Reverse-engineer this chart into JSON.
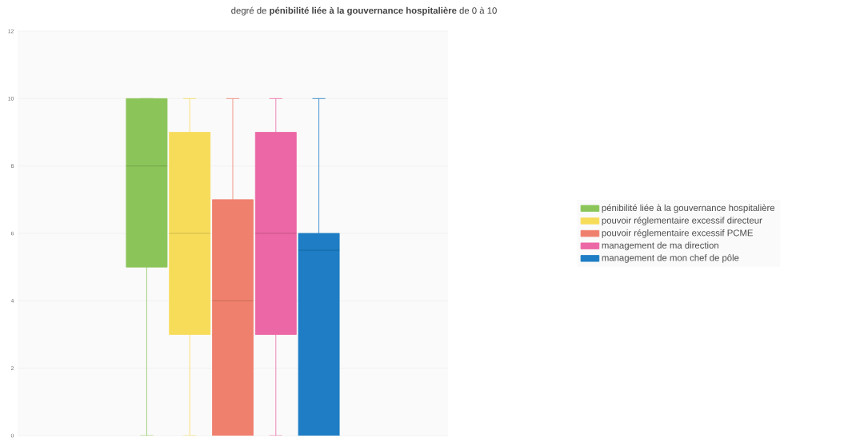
{
  "chart_data": {
    "type": "box",
    "title": "degré de **pénibilité liée à la gouvernance hospitalière** de 0 à 10",
    "categories": [
      null
    ],
    "ylim": [
      0,
      12
    ],
    "yticks": [
      0,
      2,
      4,
      6,
      8,
      10,
      12
    ],
    "grid": "y",
    "legend": "right",
    "tick_labels": "y",
    "series": [
      {
        "name": "pénibilité liée à la gouvernance hospitalière",
        "color": "#8bc55a",
        "boxes": [
          {
            "low": 0,
            "q1": 5,
            "median": 8,
            "q3": 10,
            "high": 10
          }
        ]
      },
      {
        "name": "pouvoir réglementaire excessif directeur",
        "color": "#f7dc5a",
        "boxes": [
          {
            "low": 0,
            "q1": 3,
            "median": 6,
            "q3": 9,
            "high": 10
          }
        ]
      },
      {
        "name": "pouvoir réglementaire excessif PCME",
        "color": "#ef806d",
        "boxes": [
          {
            "low": 0,
            "q1": 0,
            "median": 4,
            "q3": 7,
            "high": 10
          }
        ]
      },
      {
        "name": "management de ma direction",
        "color": "#ec67a5",
        "boxes": [
          {
            "low": 0,
            "q1": 3,
            "median": 6,
            "q3": 9,
            "high": 10
          }
        ]
      },
      {
        "name": "management de mon chef de pôle",
        "color": "#1e7dc4",
        "boxes": [
          {
            "low": 0,
            "q1": 0,
            "median": 5.5,
            "q3": 6,
            "high": 10
          }
        ]
      }
    ]
  }
}
